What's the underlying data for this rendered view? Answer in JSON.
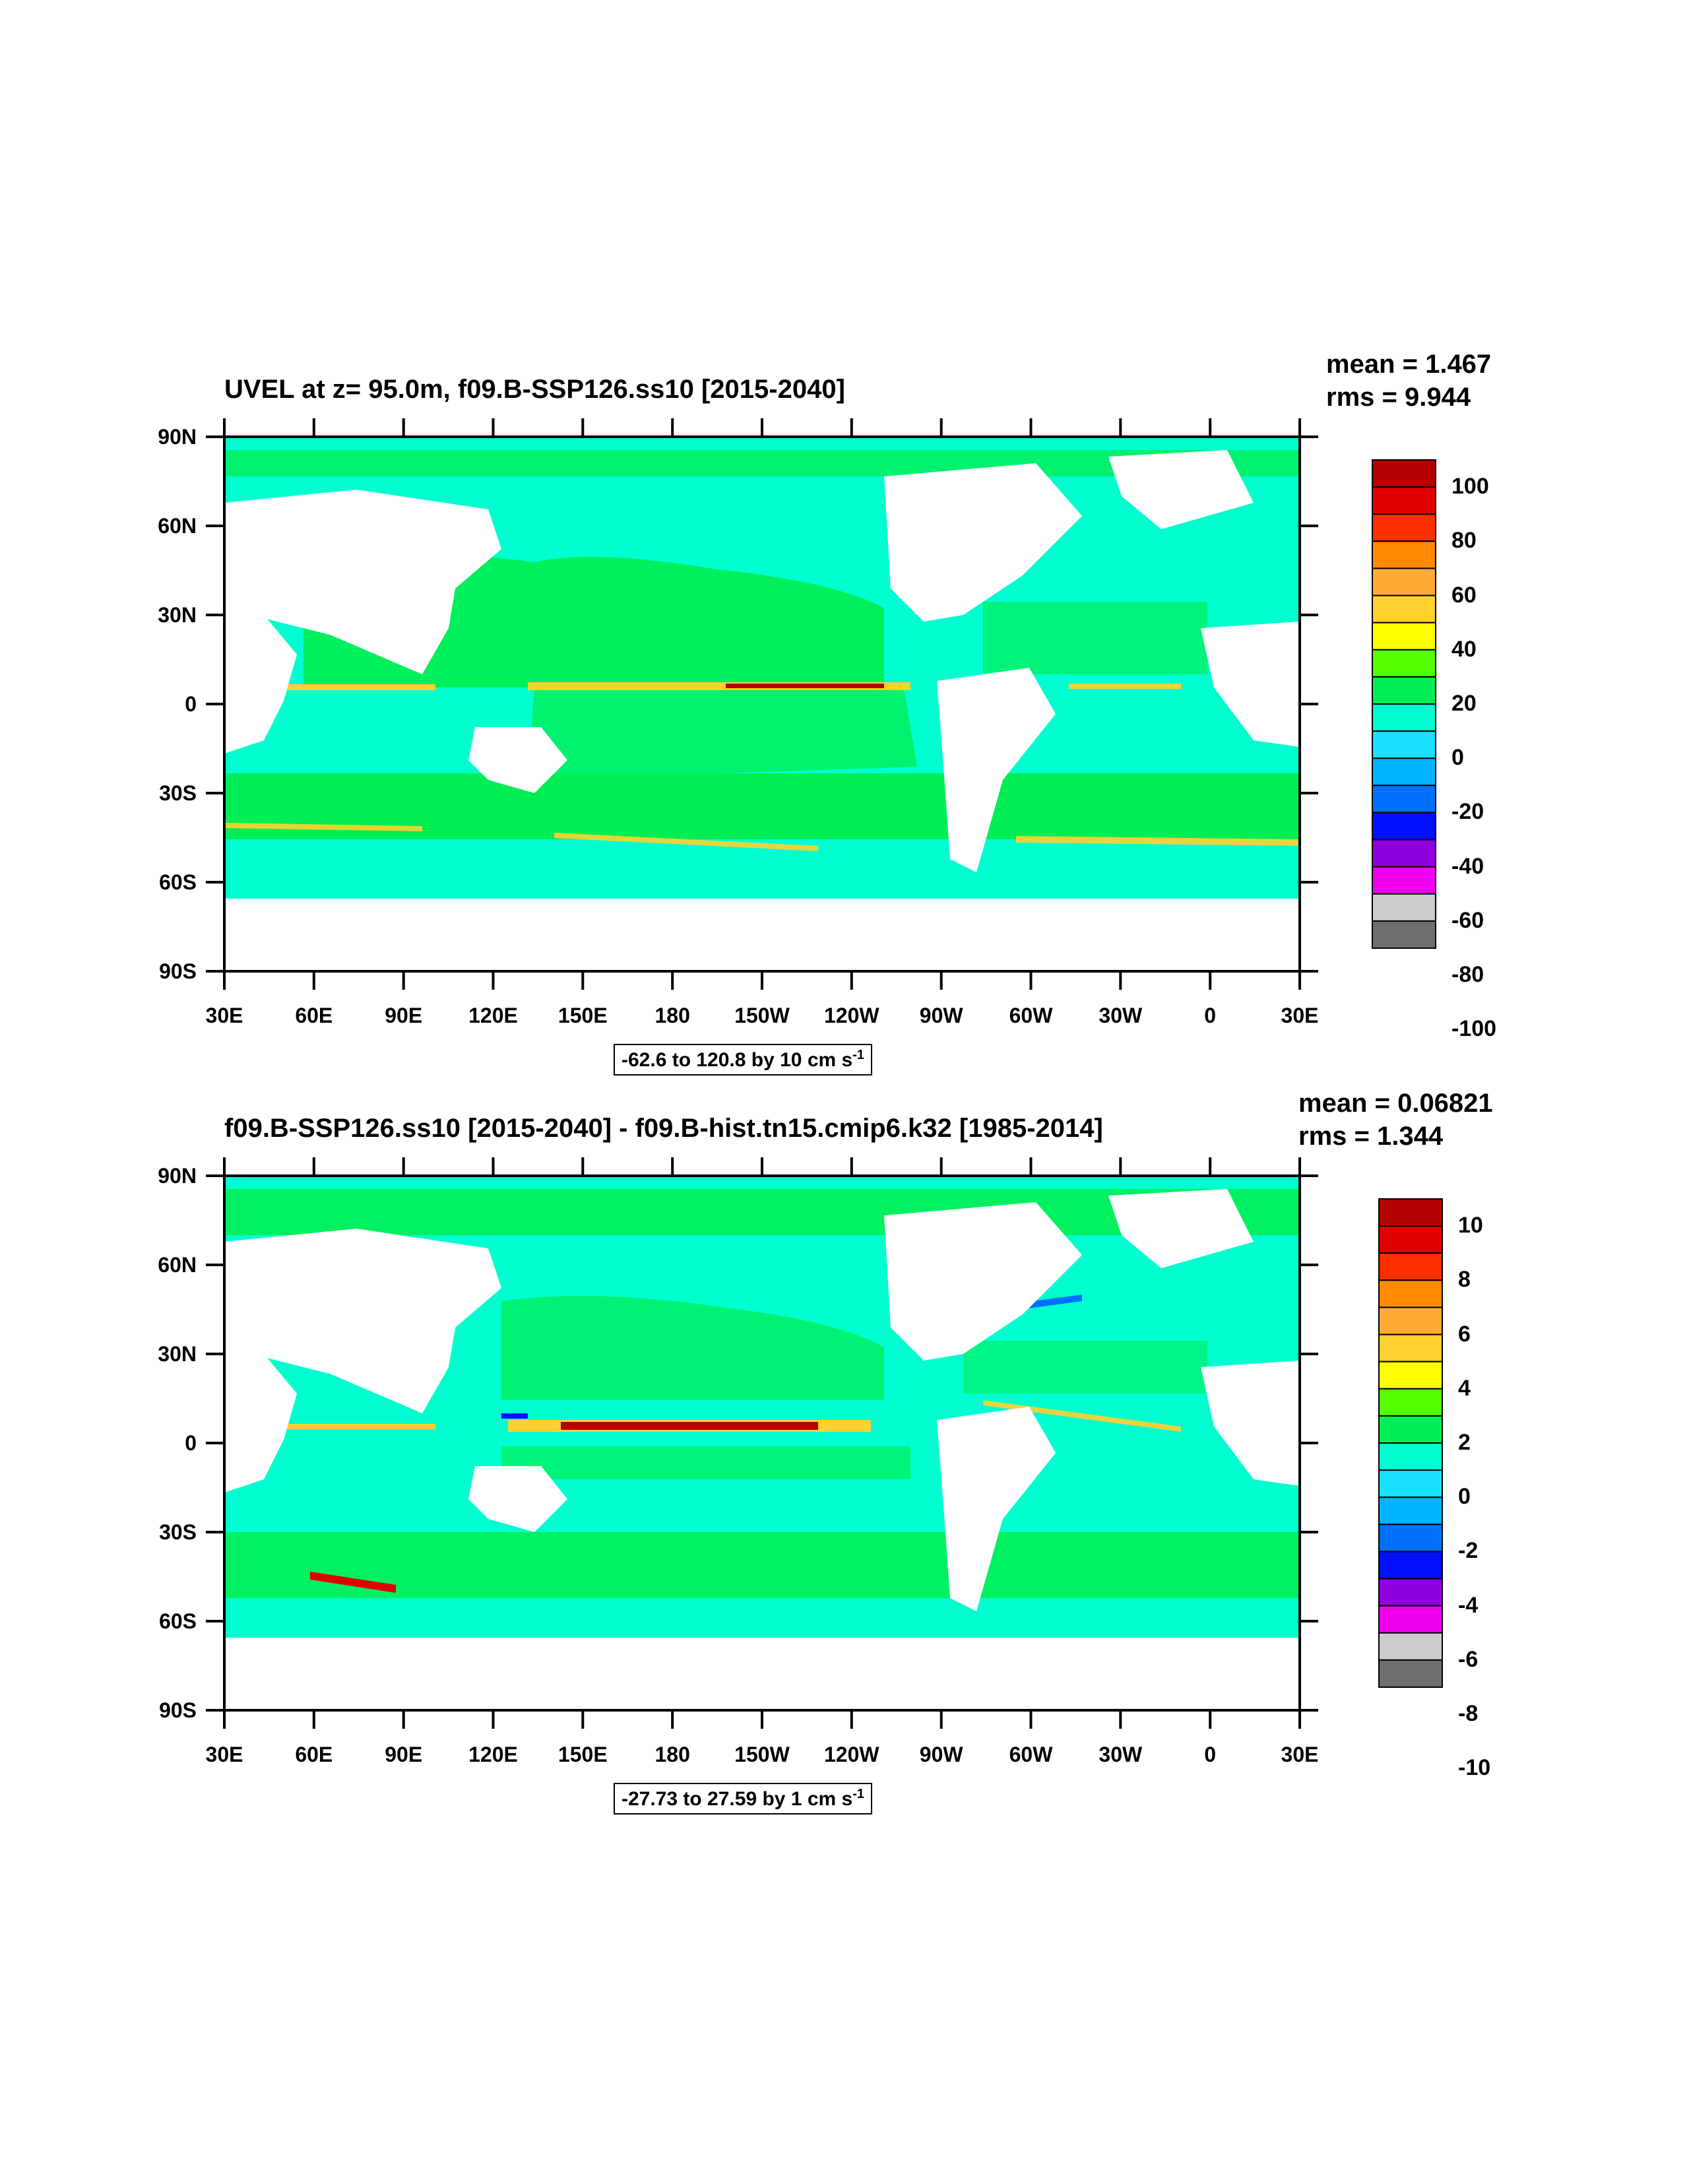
{
  "panels": [
    {
      "title": "UVEL at z=  95.0m, f09.B-SSP126.ss10 [2015-2040]",
      "stats": {
        "mean": "mean = 1.467",
        "rms": "rms = 9.944"
      },
      "info": {
        "text": "-62.6 to 120.8 by 10 cm s",
        "sup": "-1"
      },
      "colorbar": {
        "labels": [
          "100",
          "80",
          "60",
          "40",
          "20",
          "0",
          "-20",
          "-40",
          "-60",
          "-80",
          "-100"
        ],
        "colors": [
          "#b40000",
          "#e00000",
          "#ff3000",
          "#ff8a00",
          "#ffab33",
          "#ffd030",
          "#ffff00",
          "#55ff00",
          "#00ee55",
          "#00ffd0",
          "#18e0ff",
          "#00b4ff",
          "#0070ff",
          "#0010ff",
          "#8f00e0",
          "#ee00ee",
          "#cccccc",
          "#6e6e6e"
        ]
      }
    },
    {
      "title": "f09.B-SSP126.ss10 [2015-2040] - f09.B-hist.tn15.cmip6.k32 [1985-2014]",
      "stats": {
        "mean": "mean = 0.06821",
        "rms": "rms = 1.344"
      },
      "info": {
        "text": "-27.73 to 27.59 by 1 cm s",
        "sup": "-1"
      },
      "colorbar": {
        "labels": [
          "10",
          "8",
          "6",
          "4",
          "2",
          "0",
          "-2",
          "-4",
          "-6",
          "-8",
          "-10"
        ],
        "colors": [
          "#b40000",
          "#e00000",
          "#ff3000",
          "#ff8a00",
          "#ffab33",
          "#ffd030",
          "#ffff00",
          "#55ff00",
          "#00ee55",
          "#00ffd0",
          "#18e0ff",
          "#00b4ff",
          "#0070ff",
          "#0010ff",
          "#8f00e0",
          "#ee00ee",
          "#cccccc",
          "#6e6e6e"
        ]
      }
    }
  ],
  "map_axes": {
    "lat_labels": [
      "90N",
      "60N",
      "30N",
      "0",
      "30S",
      "60S",
      "90S"
    ],
    "lon_labels": [
      "30E",
      "60E",
      "90E",
      "120E",
      "150E",
      "180",
      "150W",
      "120W",
      "90W",
      "60W",
      "30W",
      "0",
      "30E"
    ]
  },
  "colors": {
    "ocean_zero": "#00ffd0",
    "ocean_pos": "#00ee55",
    "land": "#ffffff"
  }
}
